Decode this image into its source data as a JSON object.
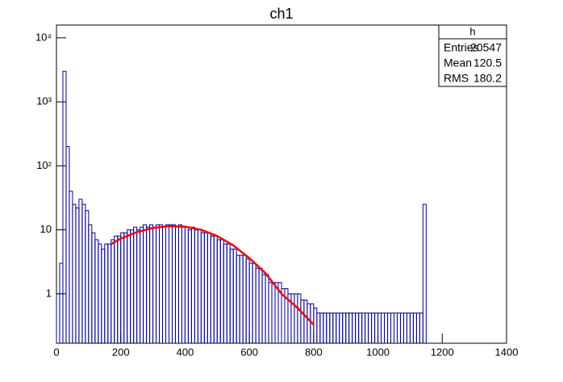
{
  "chart_data": {
    "type": "histogram",
    "title": "ch1",
    "log_y": true,
    "color": "#000099",
    "bins": [
      0,
      10,
      20,
      30,
      40,
      50,
      60,
      70,
      80,
      90,
      100,
      110,
      120,
      130,
      140,
      150,
      160,
      170,
      180,
      190,
      200,
      210,
      220,
      230,
      240,
      250,
      260,
      270,
      280,
      290,
      300,
      310,
      320,
      330,
      340,
      350,
      360,
      370,
      380,
      390,
      400,
      410,
      420,
      430,
      440,
      450,
      460,
      470,
      480,
      490,
      500,
      510,
      520,
      530,
      540,
      550,
      560,
      570,
      580,
      590,
      600,
      610,
      620,
      630,
      640,
      650,
      660,
      670,
      680,
      690,
      700,
      710,
      720,
      730,
      740,
      750,
      760,
      770,
      780,
      790,
      800,
      810,
      820,
      830,
      840,
      850,
      860,
      870,
      880,
      890,
      900,
      910,
      920,
      930,
      940,
      950,
      960,
      970,
      980,
      990,
      1000,
      1010,
      1020,
      1030,
      1040,
      1050,
      1060,
      1070,
      1080,
      1090,
      1100,
      1110,
      1120,
      1130,
      1140,
      1150,
      1160,
      1170,
      1180,
      1190,
      1200,
      1210,
      1220,
      1230,
      1240,
      1250,
      1260,
      1270,
      1280,
      1290,
      1300,
      1310,
      1320,
      1330,
      1340,
      1350,
      1360,
      1370,
      1380,
      1390,
      1400
    ],
    "values": [
      1,
      3,
      3000,
      200,
      40,
      25,
      22,
      30,
      25,
      20,
      12,
      9,
      7,
      6,
      5,
      6,
      6,
      7,
      8,
      8,
      9,
      9,
      10,
      10,
      11,
      10,
      11,
      12,
      11,
      12,
      11,
      12,
      12,
      11,
      12,
      12,
      12,
      11,
      12,
      11,
      11,
      10,
      11,
      10,
      10,
      9,
      9,
      9,
      8,
      8,
      7,
      7,
      6,
      6,
      5,
      5,
      4,
      4,
      4,
      3.5,
      3,
      3,
      2.5,
      2.5,
      2,
      2,
      1.5,
      1.5,
      1.5,
      1.5,
      1.2,
      1.2,
      1,
      1,
      1,
      1,
      0.8,
      0.8,
      0.7,
      0.7,
      0.6,
      0.5,
      0.5,
      0.5,
      0.5,
      0.5,
      0.5,
      0.5,
      0.5,
      0.5,
      0.5,
      0.5,
      0.5,
      0.5,
      0.5,
      0.5,
      0.5,
      0.5,
      0.5,
      0.5,
      0.5,
      0.5,
      0.5,
      0.5,
      0.5,
      0.5,
      0.5,
      0.5,
      0.5,
      0.5,
      0.5,
      0.5,
      0.5,
      0.5,
      25,
      0,
      0,
      0,
      0,
      0,
      0,
      0,
      0,
      0,
      0,
      0,
      0,
      0,
      0,
      0,
      0,
      0,
      0,
      0,
      0,
      0,
      0,
      0,
      0,
      0
    ],
    "fit": {
      "color": "#ff0000",
      "x": [
        170,
        200,
        250,
        300,
        350,
        400,
        450,
        500,
        550,
        600,
        650,
        700,
        750,
        800
      ],
      "y": [
        6,
        7.3,
        9.2,
        10.7,
        11.4,
        11.2,
        10,
        8,
        5.7,
        3.6,
        2.1,
        1,
        0.6,
        0.33
      ]
    },
    "xlim": [
      0,
      1400
    ],
    "xticks": [
      0,
      200,
      400,
      600,
      800,
      1000,
      1200,
      1400
    ],
    "ylim": [
      0.169,
      15850
    ],
    "yticks": [
      1,
      10,
      {
        "value": 100,
        "label": "10²"
      },
      {
        "value": 1000,
        "label": "10³"
      },
      {
        "value": 10000,
        "label": "10⁴"
      }
    ],
    "stats": {
      "title": "h",
      "rows": [
        [
          "Entries",
          "20547"
        ],
        [
          "Mean",
          "120.5"
        ],
        [
          "RMS",
          "180.2"
        ]
      ]
    }
  }
}
